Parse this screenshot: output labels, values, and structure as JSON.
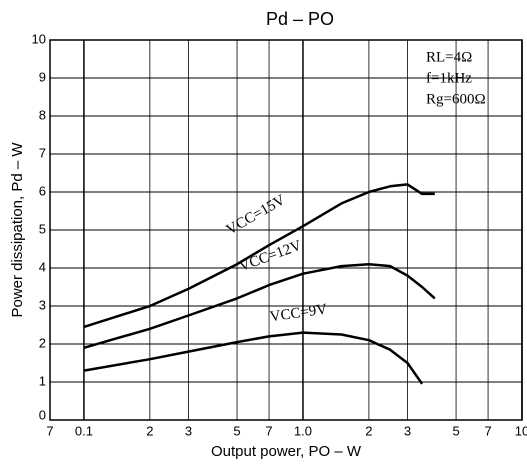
{
  "chart_data": {
    "type": "line",
    "title": "Pd  –  PO",
    "x_label": "Output power,  PO – W",
    "y_label": "Power dissipation,  Pd – W",
    "annotations": [
      "RL=4Ω",
      "f=1kHz",
      "Rg=600Ω"
    ],
    "x": [
      0.1,
      0.2,
      0.3,
      0.5,
      0.7,
      1.0,
      1.5,
      2,
      2.5,
      3,
      3.5,
      4
    ],
    "series": [
      {
        "name": "VCC=15V",
        "color": "#000000",
        "values": [
          2.45,
          3.0,
          3.45,
          4.1,
          4.6,
          5.1,
          5.7,
          6.0,
          6.15,
          6.2,
          5.95,
          5.95
        ]
      },
      {
        "name": "VCC=12V",
        "color": "#000000",
        "values": [
          1.9,
          2.4,
          2.75,
          3.2,
          3.55,
          3.85,
          4.05,
          4.1,
          4.05,
          3.8,
          3.5,
          3.2
        ]
      },
      {
        "name": "VCC=9V",
        "color": "#000000",
        "values": [
          1.3,
          1.6,
          1.8,
          2.05,
          2.2,
          2.3,
          2.25,
          2.1,
          1.85,
          1.5,
          0.95,
          null
        ]
      }
    ],
    "xscale": "log",
    "xlim": [
      0.07,
      10
    ],
    "xticks": [
      {
        "value": 0.07,
        "label": "7"
      },
      0.1,
      {
        "value": 0.2,
        "label": "2"
      },
      {
        "value": 0.3,
        "label": "3"
      },
      {
        "value": 0.5,
        "label": "5"
      },
      {
        "value": 0.7,
        "label": "7"
      },
      {
        "value": 1,
        "label": "1.0"
      },
      2,
      3,
      5,
      7,
      10
    ],
    "ylim": [
      0,
      10
    ],
    "yticks": [
      0,
      1,
      2,
      3,
      4,
      5,
      6,
      7,
      8,
      9,
      10
    ],
    "grid": true
  }
}
